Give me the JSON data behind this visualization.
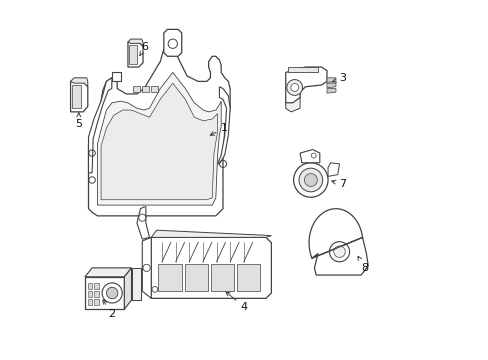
{
  "background_color": "#ffffff",
  "line_color": "#404040",
  "line_width": 0.9,
  "label_fontsize": 8,
  "label_color": "#111111",
  "figsize": [
    4.89,
    3.6
  ],
  "dpi": 100
}
